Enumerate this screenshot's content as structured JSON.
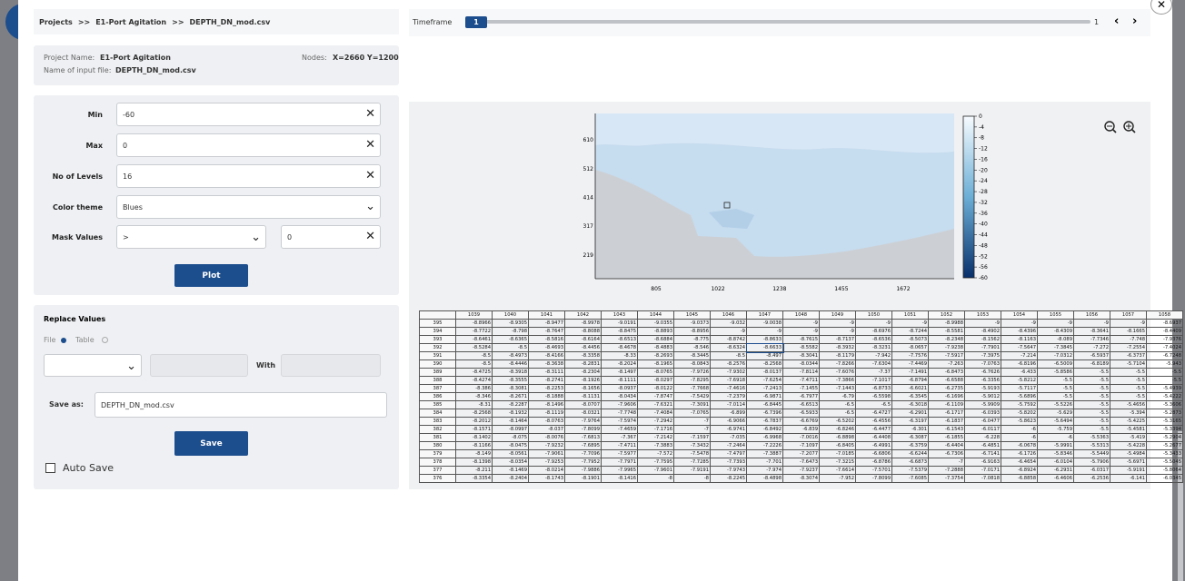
{
  "breadcrumb": {
    "items": [
      "Projects",
      ">>",
      "E1-Port Agitation",
      ">>",
      "DEPTH_DN_mod.csv"
    ]
  },
  "timeframe": {
    "label": "Timeframe",
    "value": "1",
    "end": "1"
  },
  "info": {
    "project_name_label": "Project Name:",
    "project_name": "E1-Port Agitation",
    "nodes_label": "Nodes:",
    "nodes": "X=2660 Y=1200",
    "input_file_label": "Name of input file:",
    "input_file": "DEPTH_DN_mod.csv"
  },
  "form": {
    "fields": [
      {
        "label": "Min",
        "value": "-60"
      },
      {
        "label": "Max",
        "value": "0"
      },
      {
        "label": "No of Levels",
        "value": "16"
      },
      {
        "label": "Color theme",
        "value": "Blues"
      }
    ],
    "mask": {
      "label": "Mask Values",
      "operator": ">",
      "value": "0"
    },
    "button": "Plot"
  },
  "replace": {
    "title": "Replace Values",
    "options": [
      "File",
      "Table"
    ],
    "with": "With",
    "save_as_label": "Save as:",
    "save_as": "DEPTH_DN_mod.csv",
    "button": "Save",
    "auto_save": "Auto Save"
  },
  "plot": {
    "yticks": [
      610,
      512,
      414,
      317,
      219
    ],
    "xticks": [
      805,
      1022,
      1238,
      1455,
      1672
    ],
    "colorbar": [
      0,
      -4,
      -8,
      -12,
      -16,
      -20,
      -24,
      -28,
      -32,
      -36,
      -40,
      -44,
      -48,
      -52,
      -56,
      -60
    ]
  },
  "table": {
    "columns": [
      1039,
      1040,
      1041,
      1042,
      1043,
      1044,
      1045,
      1046,
      1047,
      1048,
      1049,
      1050,
      1051,
      1052,
      1053,
      1054,
      1055,
      1056,
      1057,
      1058
    ],
    "rows": [
      {
        "label": 395,
        "cells": [
          -8.8966,
          -8.9305,
          -8.9477,
          -8.9978,
          -9.0191,
          -9.0355,
          -9.0373,
          -9.032,
          -9.0038,
          -9,
          -9,
          -9,
          -9,
          -8.9988,
          -9,
          -9,
          -9,
          -9,
          -9,
          -8.6937
        ]
      },
      {
        "label": 394,
        "cells": [
          -8.7722,
          -8.798,
          -8.7647,
          -8.8088,
          -8.8475,
          -8.8893,
          -8.8956,
          -9,
          -9,
          -9,
          -9,
          -8.6976,
          -8.7244,
          -8.5581,
          -8.4902,
          -8.4396,
          -8.4309,
          -8.3641,
          -8.1665,
          -8.4409
        ]
      },
      {
        "label": 393,
        "cells": [
          -8.6461,
          -8.6365,
          -8.5816,
          -8.6164,
          -8.6513,
          -8.6884,
          -8.775,
          -8.8742,
          -8.8633,
          -8.7615,
          -8.7137,
          -8.6536,
          -8.5073,
          -8.2348,
          -8.1562,
          -8.1163,
          -8.089,
          -7.7346,
          -7.748,
          -7.9376
        ]
      },
      {
        "label": 392,
        "cells": [
          -8.5284,
          -8.5,
          -8.4693,
          -8.4456,
          -8.4678,
          -8.4883,
          -8.546,
          -8.6324,
          -8.6633,
          -8.5582,
          -8.3932,
          -8.3231,
          -8.0657,
          -7.9238,
          -7.7901,
          -7.5647,
          -7.3845,
          -7.272,
          -7.2554,
          -7.4024
        ]
      },
      {
        "label": 391,
        "cells": [
          -8.5,
          -8.4973,
          -8.4166,
          -8.3358,
          -8.33,
          -8.2693,
          -8.3445,
          -8.5,
          -8.497,
          -8.3041,
          -8.1179,
          -7.942,
          -7.7576,
          -7.5917,
          -7.3975,
          -7.214,
          -7.0312,
          -6.5937,
          -6.3737,
          -6.7248
        ]
      },
      {
        "label": 390,
        "cells": [
          -8.5,
          -8.4446,
          -8.3638,
          -8.2831,
          -8.2024,
          -8.1965,
          -8.0843,
          -8.2576,
          -8.2568,
          -8.0344,
          -7.8266,
          -7.6304,
          -7.4469,
          -7.263,
          -7.0763,
          -6.8196,
          -6.5009,
          -6.8189,
          -5.7104,
          -5.943
        ]
      },
      {
        "label": 389,
        "cells": [
          -8.4725,
          -8.3918,
          -8.3111,
          -8.2304,
          -8.1497,
          -8.0765,
          -7.9726,
          -7.9302,
          -8.0137,
          -7.8114,
          -7.6076,
          -7.37,
          -7.1491,
          -6.8473,
          -6.7626,
          -6.433,
          -5.8586,
          -5.5,
          -5.5,
          -5.5
        ]
      },
      {
        "label": 388,
        "cells": [
          -8.4274,
          -8.3555,
          -8.2741,
          -8.1926,
          -8.1111,
          -8.0297,
          -7.8295,
          -7.6918,
          -7.6254,
          -7.4711,
          -7.3866,
          -7.1017,
          -6.8794,
          -6.6588,
          -6.3356,
          -5.8212,
          -5.5,
          -5.5,
          -5.5,
          -5.5
        ]
      },
      {
        "label": 387,
        "cells": [
          -8.386,
          -8.3081,
          -8.2253,
          -8.1656,
          -8.0937,
          -8.0122,
          -7.7668,
          -7.4616,
          -7.2413,
          -7.1455,
          -7.1443,
          -6.8733,
          -6.6021,
          -6.2735,
          -5.9193,
          -5.7117,
          -5.5,
          -5.5,
          -5.5,
          -5.4939
        ]
      },
      {
        "label": 386,
        "cells": [
          -8.346,
          -8.2671,
          -8.1888,
          -8.1131,
          -8.0434,
          -7.8747,
          -7.5429,
          -7.2379,
          -6.9871,
          -6.7977,
          -6.79,
          -6.5598,
          -6.3545,
          -6.1696,
          -5.9012,
          -5.6896,
          -5.5,
          -5.5,
          -5.5,
          -5.4222
        ]
      },
      {
        "label": 385,
        "cells": [
          -8.31,
          -8.2287,
          -8.1496,
          -8.0707,
          -7.9606,
          -7.6321,
          -7.3091,
          -7.0114,
          -6.8445,
          -6.6513,
          -6.5,
          -6.5,
          -6.3018,
          -6.1109,
          -5.9909,
          -5.7592,
          -5.5226,
          -5.5,
          -5.4656,
          -5.3606
        ]
      },
      {
        "label": 384,
        "cells": [
          -8.2568,
          -8.1932,
          -8.1119,
          -8.0321,
          -7.7748,
          -7.4084,
          -7.0765,
          -6.899,
          -6.7396,
          -6.5933,
          -6.5,
          -6.4727,
          -6.2901,
          -6.1717,
          -6.0393,
          -5.8202,
          -5.629,
          -5.5,
          -5.394,
          -5.2873
        ]
      },
      {
        "label": 383,
        "cells": [
          -8.2012,
          -8.1464,
          -8.0763,
          -7.9764,
          -7.5974,
          -7.2942,
          -7,
          -6.9066,
          -6.7837,
          -6.6769,
          -6.5202,
          -6.4556,
          -6.3197,
          -6.1837,
          -6.0477,
          -5.8623,
          -5.6494,
          -5.5,
          -5.4225,
          -5.3165
        ]
      },
      {
        "label": 382,
        "cells": [
          -8.1571,
          -8.0997,
          -8.037,
          -7.8099,
          -7.4659,
          -7.1716,
          -7,
          -6.9741,
          -6.8492,
          -6.839,
          -6.8246,
          -6.4477,
          -6.301,
          -6.1543,
          -6.0117,
          -6,
          -5.759,
          -5.5,
          -5.4581,
          -5.3394
        ]
      },
      {
        "label": 381,
        "cells": [
          -8.1402,
          -8.075,
          -8.0076,
          -7.6813,
          -7.367,
          -7.2142,
          -7.1597,
          -7.035,
          -6.9968,
          -7.0016,
          -6.8898,
          -6.4408,
          -6.3087,
          -6.1855,
          -6.228,
          -6,
          -6,
          -5.5363,
          -5.419,
          -5.2904
        ]
      },
      {
        "label": 380,
        "cells": [
          -8.1166,
          -8.0475,
          -7.9232,
          -7.6895,
          -7.4711,
          -7.3883,
          -7.3432,
          -7.2464,
          -7.2226,
          -7.1097,
          -6.8405,
          -6.4991,
          -6.3759,
          -6.4404,
          -6.4851,
          -6.0678,
          -5.9991,
          -5.5313,
          -5.4228,
          -5.2677
        ]
      },
      {
        "label": 379,
        "cells": [
          -8.149,
          -8.0561,
          -7.9061,
          -7.7096,
          -7.5977,
          -7.572,
          -7.5478,
          -7.4797,
          -7.3887,
          -7.2077,
          -7.0185,
          -6.6806,
          -6.6244,
          -6.7306,
          -6.7141,
          -6.1726,
          -5.8346,
          -5.5449,
          -5.4984,
          -5.3433
        ]
      },
      {
        "label": 378,
        "cells": [
          -8.1398,
          -8.0354,
          -7.9253,
          -7.7952,
          -7.7971,
          -7.7595,
          -7.7285,
          -7.7393,
          -7.701,
          -7.6473,
          -7.3215,
          -6.8786,
          -6.6873,
          -7,
          -6.9163,
          -6.4654,
          -6.0104,
          -5.7906,
          -5.6971,
          -5.5045
        ]
      },
      {
        "label": 377,
        "cells": [
          -8.211,
          -8.1469,
          -8.0214,
          -7.9886,
          -7.9965,
          -7.9601,
          -7.9191,
          -7.9743,
          -7.974,
          -7.9237,
          -7.6614,
          -7.5701,
          -7.5379,
          -7.2888,
          -7.0171,
          -6.8924,
          -6.2931,
          -6.0317,
          -5.9191,
          -5.8064
        ]
      },
      {
        "label": 376,
        "cells": [
          -8.3354,
          -8.2404,
          -8.1743,
          -8.1901,
          -8.1416,
          -8,
          -8,
          -8.2245,
          -8.4898,
          -8.3074,
          -7.952,
          -7.8099,
          -7.6085,
          -7.3754,
          -7.0818,
          -6.8858,
          -6.4606,
          -6.2536,
          -6.141,
          -6.0345
        ]
      }
    ]
  }
}
